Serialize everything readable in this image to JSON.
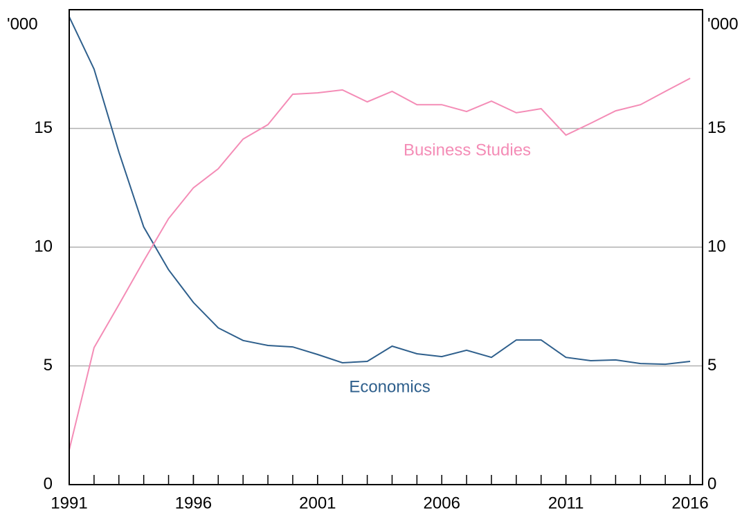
{
  "chart_data": {
    "type": "line",
    "y_unit": "'000",
    "y2_unit": "'000",
    "x": [
      1991,
      1992,
      1993,
      1994,
      1995,
      1996,
      1997,
      1998,
      1999,
      2000,
      2001,
      2002,
      2003,
      2004,
      2005,
      2006,
      2007,
      2008,
      2009,
      2010,
      2011,
      2012,
      2013,
      2014,
      2015,
      2016
    ],
    "series": [
      {
        "name": "Economics",
        "color": "#2e5f8c",
        "values": [
          19.7,
          17.5,
          14.0,
          10.85,
          9.05,
          7.67,
          6.6,
          6.07,
          5.86,
          5.8,
          5.48,
          5.13,
          5.19,
          5.83,
          5.51,
          5.39,
          5.66,
          5.36,
          6.09,
          6.09,
          5.36,
          5.22,
          5.25,
          5.1,
          5.07,
          5.19
        ]
      },
      {
        "name": "Business Studies",
        "color": "#f48cb6",
        "values": [
          1.46,
          5.77,
          7.58,
          9.42,
          11.2,
          12.5,
          13.3,
          14.55,
          15.16,
          16.44,
          16.5,
          16.62,
          16.12,
          16.56,
          16.0,
          16.0,
          15.71,
          16.15,
          15.66,
          15.83,
          14.72,
          15.22,
          15.74,
          16.0,
          16.56,
          17.11
        ]
      }
    ],
    "xlim": [
      1991,
      2016.5
    ],
    "xticks": [
      1991,
      1996,
      2001,
      2006,
      2011,
      2016
    ],
    "xminor_step": 1,
    "ylim": [
      0,
      20
    ],
    "yticks": [
      0,
      5,
      10,
      15
    ],
    "y2lim": [
      0,
      20
    ],
    "y2ticks": [
      0,
      5,
      10,
      15
    ],
    "grid": true
  }
}
